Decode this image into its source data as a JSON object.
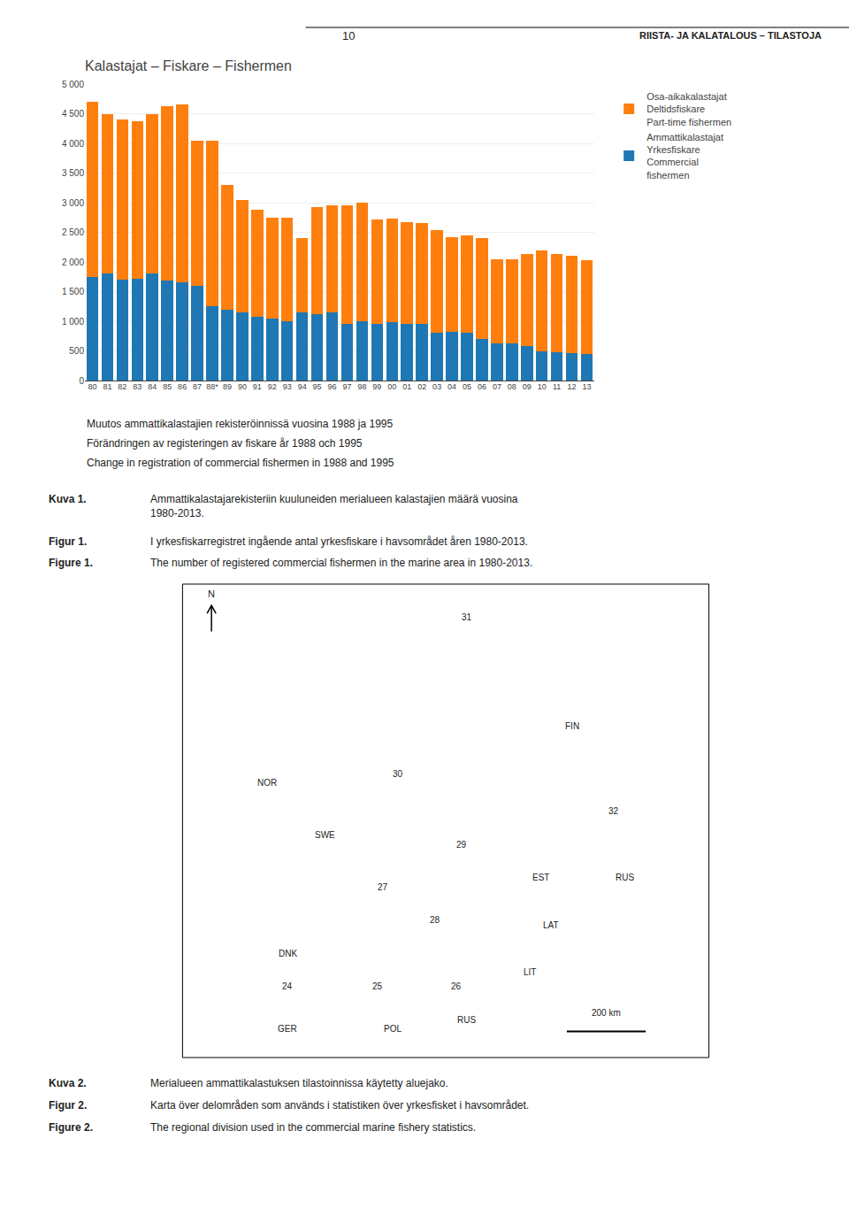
{
  "chart_data": {
    "type": "bar",
    "title": "Kalastajat – Fiskare – Fishermen",
    "categories": [
      "80",
      "81",
      "82",
      "83",
      "84",
      "85",
      "86",
      "87",
      "88*",
      "89",
      "90",
      "91",
      "92",
      "93",
      "94",
      "95",
      "96",
      "97",
      "98",
      "99",
      "00",
      "01",
      "02",
      "03",
      "04",
      "05",
      "06",
      "07",
      "08",
      "09",
      "10",
      "11",
      "12",
      "13"
    ],
    "series": [
      {
        "name": "Ammattikalastajat\nYrkesfiskare\nCommercial\nfishermen",
        "values": [
          1750,
          1800,
          1700,
          1720,
          1800,
          1680,
          1650,
          1600,
          1250,
          1200,
          1150,
          1080,
          1050,
          1000,
          1150,
          1120,
          1150,
          950,
          1000,
          960,
          980,
          960,
          950,
          800,
          820,
          800,
          700,
          630,
          620,
          580,
          490,
          480,
          460,
          450
        ]
      },
      {
        "name": "Osa-aikakalastajat\nDeltidsfiskare\nPart-time fishermen",
        "values": [
          2950,
          2700,
          2700,
          2650,
          2700,
          2950,
          3000,
          2450,
          2800,
          2100,
          1900,
          1800,
          1700,
          1750,
          1250,
          1800,
          1800,
          2000,
          2000,
          1750,
          1750,
          1710,
          1700,
          1730,
          1600,
          1650,
          1700,
          1420,
          1430,
          1550,
          1700,
          1650,
          1650,
          1580
        ]
      }
    ],
    "stacked": true,
    "ylim": [
      0,
      5000
    ],
    "yticks": [
      0,
      500,
      {
        "value": 1000,
        "label": "1 000"
      },
      {
        "value": 1500,
        "label": "1 500"
      },
      {
        "value": 2000,
        "label": "2 000"
      },
      {
        "value": 2500,
        "label": "2 500"
      },
      {
        "value": 3000,
        "label": "3 000"
      },
      {
        "value": 3500,
        "label": "3 500"
      },
      {
        "value": 4000,
        "label": "4 000"
      },
      {
        "value": 4500,
        "label": "4 500"
      },
      {
        "value": 5000,
        "label": "5 000"
      }
    ],
    "grid": true,
    "legend": "right",
    "annotations": [
      "10",
      "RIISTA- JA KALATALOUS – TILASTOJA",
      "Muutos ammattikalastajien rekisteröinnissä vuosina 1988 ja 1995",
      "Förändringen av registeringen av fiskare år 1988 och 1995",
      "Change in registration of commercial fishermen in 1988 and 1995",
      "Kuva 1.",
      "Ammattikalastajarekisteriin kuuluneiden merialueen kalastajien määrä vuosina\n1980-2013.",
      "Figur 1.",
      "I yrkesfiskarregistret ingående antal yrkesfiskare i havsområdet åren 1980-2013.",
      "Figure 1.",
      "The number of registered commercial fishermen in the marine area in 1980-2013.",
      "31",
      "FIN",
      "NOR",
      "30",
      "32",
      "SWE",
      "29",
      "EST",
      "RUS",
      "27",
      "28",
      "LAT",
      "DNK",
      "24",
      "25",
      "26",
      "LIT",
      "RUS",
      "GER",
      "POL",
      "N",
      "200 km",
      "Kuva 2.",
      "Merialueen ammattikalastuksen tilastoinnissa käytetty aluejako.",
      "Figur 2.",
      "Karta över delområden som används i statistiken över yrkesfisket i havsområdet.",
      "Figure 2.",
      "The regional division used in the commercial marine fishery statistics."
    ]
  }
}
